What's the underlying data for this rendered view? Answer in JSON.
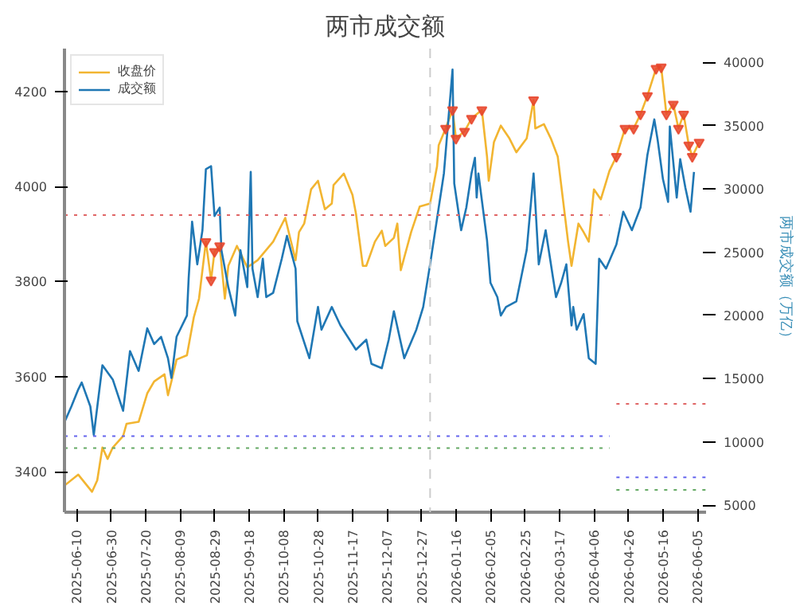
{
  "chart_data": {
    "type": "line",
    "title": "两市成交额",
    "y2label": "两市成交额（万亿）",
    "xlim": [
      "2025-06-03",
      "2026-06-10"
    ],
    "xticks": [
      "2025-06-10",
      "2025-06-30",
      "2025-07-20",
      "2025-08-09",
      "2025-08-29",
      "2025-09-18",
      "2025-10-08",
      "2025-10-28",
      "2025-11-17",
      "2025-12-07",
      "2025-12-27",
      "2026-01-16",
      "2026-02-05",
      "2026-02-25",
      "2026-03-17",
      "2026-04-06",
      "2026-04-26",
      "2026-05-16",
      "2026-06-05"
    ],
    "ylim": [
      3315,
      4290
    ],
    "yticks": [
      3400,
      3600,
      3800,
      4000,
      4200
    ],
    "y2lim": [
      4440,
      41100
    ],
    "y2ticks": [
      5000,
      10000,
      15000,
      20000,
      25000,
      30000,
      35000,
      40000
    ],
    "grid": false,
    "legend": "top left",
    "ref_lines": [
      {
        "axis": "x",
        "value": "2026-01-01",
        "label": null,
        "color": "#cccccc",
        "line_style": "dashed"
      }
    ],
    "series": [
      {
        "name": "收盘价",
        "color": "#f2b531",
        "axis": "y",
        "x": [
          "2025-06-03",
          "2025-06-11",
          "2025-06-19",
          "2025-06-22",
          "2025-06-25",
          "2025-06-28",
          "2025-07-01",
          "2025-07-07",
          "2025-07-09",
          "2025-07-16",
          "2025-07-21",
          "2025-07-25",
          "2025-07-31",
          "2025-08-02",
          "2025-08-04",
          "2025-08-07",
          "2025-08-13",
          "2025-08-17",
          "2025-08-20",
          "2025-08-24",
          "2025-08-27",
          "2025-08-29",
          "2025-09-01",
          "2025-09-04",
          "2025-09-06",
          "2025-09-11",
          "2025-09-17",
          "2025-09-23",
          "2025-10-02",
          "2025-10-09",
          "2025-10-15",
          "2025-10-17",
          "2025-10-20",
          "2025-10-24",
          "2025-10-28",
          "2025-11-01",
          "2025-11-05",
          "2025-11-06",
          "2025-11-12",
          "2025-11-17",
          "2025-11-19",
          "2025-11-23",
          "2025-11-25",
          "2025-11-30",
          "2025-12-04",
          "2025-12-06",
          "2025-12-11",
          "2025-12-13",
          "2025-12-15",
          "2025-12-21",
          "2025-12-26",
          "2026-01-01",
          "2026-01-05",
          "2026-01-06",
          "2026-01-10",
          "2026-01-14",
          "2026-01-16",
          "2026-01-21",
          "2026-01-25",
          "2026-01-31",
          "2026-02-03",
          "2026-02-04",
          "2026-02-07",
          "2026-02-11",
          "2026-02-16",
          "2026-02-20",
          "2026-02-26",
          "2026-03-02",
          "2026-03-03",
          "2026-03-08",
          "2026-03-12",
          "2026-03-16",
          "2026-03-22",
          "2026-03-24",
          "2026-03-28",
          "2026-03-31",
          "2026-04-03",
          "2026-04-06",
          "2026-04-10",
          "2026-04-15",
          "2026-04-19",
          "2026-04-24",
          "2026-04-29",
          "2026-05-03",
          "2026-05-07",
          "2026-05-12",
          "2026-05-15",
          "2026-05-18",
          "2026-05-22",
          "2026-05-25",
          "2026-05-28",
          "2026-05-31",
          "2026-06-02",
          "2026-06-06"
        ],
        "values": [
          3371,
          3394,
          3358,
          3382,
          3451,
          3427,
          3451,
          3475,
          3501,
          3505,
          3565,
          3590,
          3605,
          3561,
          3590,
          3636,
          3645,
          3725,
          3764,
          3884,
          3803,
          3863,
          3875,
          3764,
          3833,
          3875,
          3830,
          3845,
          3884,
          3934,
          3845,
          3904,
          3922,
          3994,
          4012,
          3952,
          3964,
          4003,
          4027,
          3982,
          3943,
          3833,
          3833,
          3884,
          3907,
          3875,
          3892,
          3922,
          3824,
          3904,
          3958,
          3964,
          4042,
          4087,
          4122,
          4161,
          4101,
          4116,
          4143,
          4161,
          4063,
          4012,
          4093,
          4128,
          4101,
          4072,
          4101,
          4182,
          4122,
          4131,
          4101,
          4063,
          3884,
          3833,
          3922,
          3904,
          3884,
          3994,
          3973,
          4033,
          4063,
          4122,
          4122,
          4152,
          4191,
          4248,
          4251,
          4152,
          4173,
          4122,
          4152,
          4087,
          4063,
          4093
        ]
      },
      {
        "name": "成交额",
        "color": "#1f77b4",
        "axis": "y2",
        "x": [
          "2025-06-03",
          "2025-06-07",
          "2025-06-11",
          "2025-06-13",
          "2025-06-18",
          "2025-06-20",
          "2025-06-25",
          "2025-07-01",
          "2025-07-07",
          "2025-07-11",
          "2025-07-16",
          "2025-07-21",
          "2025-07-25",
          "2025-07-29",
          "2025-08-02",
          "2025-08-04",
          "2025-08-07",
          "2025-08-13",
          "2025-08-14",
          "2025-08-16",
          "2025-08-19",
          "2025-08-22",
          "2025-08-24",
          "2025-08-27",
          "2025-08-29",
          "2025-09-01",
          "2025-09-02",
          "2025-09-06",
          "2025-09-10",
          "2025-09-13",
          "2025-09-17",
          "2025-09-19",
          "2025-09-20",
          "2025-09-23",
          "2025-09-26",
          "2025-09-28",
          "2025-10-02",
          "2025-10-07",
          "2025-10-10",
          "2025-10-15",
          "2025-10-16",
          "2025-10-23",
          "2025-10-28",
          "2025-10-30",
          "2025-11-05",
          "2025-11-10",
          "2025-11-19",
          "2025-11-25",
          "2025-11-28",
          "2025-12-04",
          "2025-12-08",
          "2025-12-11",
          "2025-12-17",
          "2025-12-24",
          "2025-12-28",
          "2026-01-01",
          "2026-01-06",
          "2026-01-09",
          "2026-01-14",
          "2026-01-15",
          "2026-01-19",
          "2026-01-22",
          "2026-01-25",
          "2026-01-27",
          "2026-01-28",
          "2026-01-29",
          "2026-02-03",
          "2026-02-05",
          "2026-02-09",
          "2026-02-11",
          "2026-02-14",
          "2026-02-20",
          "2026-02-26",
          "2026-03-02",
          "2026-03-05",
          "2026-03-09",
          "2026-03-15",
          "2026-03-18",
          "2026-03-21",
          "2026-03-24",
          "2026-03-25",
          "2026-03-27",
          "2026-03-31",
          "2026-04-03",
          "2026-04-07",
          "2026-04-09",
          "2026-04-13",
          "2026-04-19",
          "2026-04-23",
          "2026-04-28",
          "2026-05-03",
          "2026-05-07",
          "2026-05-11",
          "2026-05-13",
          "2026-05-16",
          "2026-05-19",
          "2026-05-20",
          "2026-05-24",
          "2026-05-26",
          "2026-05-29",
          "2026-06-01",
          "2026-06-03"
        ],
        "values": [
          11560,
          12800,
          14150,
          14700,
          12800,
          10550,
          16060,
          14930,
          12460,
          17180,
          15610,
          18980,
          17740,
          18310,
          16620,
          15050,
          18310,
          19990,
          22920,
          27410,
          24040,
          26740,
          31570,
          31800,
          27860,
          28530,
          25160,
          22240,
          19990,
          25160,
          22240,
          31350,
          23700,
          21450,
          24490,
          21450,
          21790,
          24490,
          26290,
          23700,
          19540,
          16620,
          20670,
          18870,
          20670,
          19210,
          17290,
          18080,
          16170,
          15830,
          18080,
          20330,
          16620,
          18870,
          20670,
          24040,
          28530,
          31230,
          39440,
          30440,
          26740,
          28530,
          31230,
          32470,
          29320,
          31230,
          25950,
          22580,
          21450,
          19990,
          20670,
          21110,
          25160,
          31230,
          24040,
          26740,
          21450,
          22580,
          24040,
          19210,
          20670,
          18870,
          20110,
          16620,
          16170,
          24490,
          23700,
          25610,
          28200,
          26740,
          28530,
          32690,
          35500,
          33820,
          30780,
          28980,
          34940,
          29320,
          32360,
          30110,
          28200,
          31350
        ]
      },
      {
        "type": "scatter",
        "marker": "triangle",
        "color": "#e8452c",
        "axis": "y",
        "x": [
          "2025-08-24",
          "2025-08-27",
          "2025-08-29",
          "2025-09-01",
          "2026-01-10",
          "2026-01-14",
          "2026-01-16",
          "2026-01-21",
          "2026-01-25",
          "2026-01-31",
          "2026-03-02",
          "2026-04-19",
          "2026-04-24",
          "2026-04-29",
          "2026-05-03",
          "2026-05-07",
          "2026-05-12",
          "2026-05-15",
          "2026-05-18",
          "2026-05-22",
          "2026-05-25",
          "2026-05-28",
          "2026-05-31",
          "2026-06-02",
          "2026-06-06"
        ],
        "values": [
          3884,
          3803,
          3863,
          3875,
          4122,
          4161,
          4101,
          4116,
          4143,
          4161,
          4182,
          4063,
          4122,
          4122,
          4152,
          4191,
          4248,
          4251,
          4152,
          4173,
          4122,
          4152,
          4087,
          4063,
          4093
        ]
      },
      {
        "type": "line",
        "line_style": "dotted",
        "color": "#e06666",
        "axis": "y",
        "x": [
          "2025-06-03",
          "2026-04-15"
        ],
        "values": [
          3940,
          3940
        ]
      },
      {
        "type": "line",
        "line_style": "dotted",
        "color": "#6666ee",
        "axis": "y",
        "x": [
          "2025-06-03",
          "2026-04-15"
        ],
        "values": [
          3475,
          3475
        ]
      },
      {
        "type": "line",
        "line_style": "dotted",
        "color": "#66aa66",
        "axis": "y",
        "x": [
          "2025-06-03",
          "2026-04-15"
        ],
        "values": [
          3450,
          3450
        ]
      },
      {
        "type": "line",
        "line_style": "dotted",
        "color": "#e06666",
        "axis": "y2",
        "x": [
          "2026-04-19",
          "2026-06-10"
        ],
        "values": [
          13000,
          13000
        ]
      },
      {
        "type": "line",
        "line_style": "dotted",
        "color": "#6666ee",
        "axis": "y2",
        "x": [
          "2026-04-19",
          "2026-06-10"
        ],
        "values": [
          7200,
          7200
        ]
      },
      {
        "type": "line",
        "line_style": "dotted",
        "color": "#66aa66",
        "axis": "y2",
        "x": [
          "2026-04-19",
          "2026-06-10"
        ],
        "values": [
          6200,
          6200
        ]
      }
    ]
  }
}
